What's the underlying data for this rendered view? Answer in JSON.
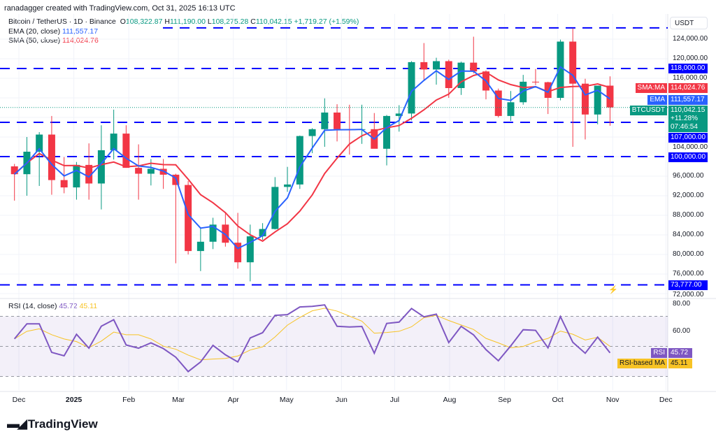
{
  "header": {
    "credit": "ranadagger created with TradingView.com, Oct 31, 2025 16:13 UTC"
  },
  "legend": {
    "symbol": "Bitcoin / TetherUS · 1D · Binance",
    "o_label": "O",
    "o": "108,322.87",
    "h_label": "H",
    "h": "111,190.00",
    "l_label": "L",
    "l": "108,275.28",
    "c_label": "C",
    "c": "110,042.15",
    "change": "+1,719.27 (+1.59%)",
    "ema_label": "EMA (20, close)",
    "ema_value": "111,557.17",
    "sma_label": "SMA (50, close)",
    "sma_value": "114,024.76",
    "rsi_label": "RSI (14, close)",
    "rsi_value": "45.72",
    "rsi_ma_value": "45.11"
  },
  "axis": {
    "currency": "USDT",
    "price_ticks": [
      "124,000.00",
      "120,000.00",
      "116,000.00",
      "104,000.00",
      "96,000.00",
      "92,000.00",
      "88,000.00",
      "84,000.00",
      "80,000.00",
      "76,000.00",
      "72,000.00"
    ],
    "rsi_ticks": [
      "80.00",
      "60.00"
    ],
    "time_ticks": [
      "Dec",
      "2025",
      "Feb",
      "Mar",
      "Apr",
      "May",
      "Jun",
      "Jul",
      "Aug",
      "Sep",
      "Oct",
      "Nov",
      "Dec"
    ]
  },
  "tags": {
    "sma": "SMA:MA",
    "sma_val": "114,024.76",
    "ema": "EMA",
    "ema_val": "111,557.17",
    "symbol": "BTCUSDT",
    "price": "110,042.15",
    "pct": "+11.28%",
    "countdown": "07:46:54",
    "rsi": "RSI",
    "rsi_val": "45.72",
    "rsi_ma": "RSI-based MA",
    "rsi_ma_val": "45.11"
  },
  "brand": "TradingView",
  "colors": {
    "up": "#089981",
    "down": "#f23645",
    "ema": "#2962ff",
    "sma": "#f23645",
    "level": "#0000ff",
    "rsi": "#7e57c2",
    "rsi_ma": "#f7c325"
  },
  "chart_data": {
    "type": "candlestick",
    "interval_shown": "weekly-approximation of 1D",
    "ylim": [
      72000,
      126500
    ],
    "levels": [
      {
        "value": 126300,
        "label": ""
      },
      {
        "value": 118000,
        "label": "118,000.00"
      },
      {
        "value": 107000,
        "label": "107,000.00"
      },
      {
        "value": 100000,
        "label": "100,000.00"
      },
      {
        "value": 73777,
        "label": "73,777.00"
      }
    ],
    "candles": [
      [
        "2024-11-25",
        98000,
        98500,
        91000,
        96400
      ],
      [
        "2024-12-02",
        96400,
        104000,
        92000,
        101000
      ],
      [
        "2024-12-09",
        101000,
        105000,
        94000,
        104500
      ],
      [
        "2024-12-16",
        104500,
        108300,
        92200,
        95200
      ],
      [
        "2024-12-23",
        95200,
        99900,
        92500,
        93700
      ],
      [
        "2024-12-30",
        93700,
        98900,
        91200,
        98300
      ],
      [
        "2025-01-06",
        98300,
        102700,
        91200,
        94500
      ],
      [
        "2025-01-13",
        94500,
        106400,
        89200,
        101300
      ],
      [
        "2025-01-20",
        101300,
        109600,
        99400,
        104700
      ],
      [
        "2025-01-27",
        104700,
        106400,
        97700,
        97700
      ],
      [
        "2025-02-03",
        97700,
        102500,
        91200,
        96500
      ],
      [
        "2025-02-10",
        96500,
        99500,
        94100,
        97500
      ],
      [
        "2025-02-17",
        97500,
        99500,
        93400,
        96300
      ],
      [
        "2025-02-24",
        96300,
        96500,
        78200,
        94200
      ],
      [
        "2025-03-03",
        94200,
        95000,
        80000,
        80700
      ],
      [
        "2025-03-10",
        80700,
        85300,
        76600,
        82600
      ],
      [
        "2025-03-17",
        82600,
        87500,
        81100,
        86100
      ],
      [
        "2025-03-24",
        86100,
        88700,
        81600,
        82400
      ],
      [
        "2025-03-31",
        82400,
        88500,
        77100,
        78400
      ],
      [
        "2025-04-07",
        78400,
        86100,
        74500,
        83700
      ],
      [
        "2025-04-14",
        83700,
        86400,
        83000,
        85200
      ],
      [
        "2025-04-21",
        85200,
        95800,
        85100,
        93800
      ],
      [
        "2025-04-28",
        93800,
        97900,
        92800,
        94300
      ],
      [
        "2025-05-05",
        94300,
        104300,
        93400,
        104200
      ],
      [
        "2025-05-12",
        104200,
        105800,
        100700,
        105600
      ],
      [
        "2025-05-19",
        105600,
        111900,
        102000,
        109000
      ],
      [
        "2025-05-26",
        109000,
        110700,
        103100,
        105600
      ],
      [
        "2025-06-02",
        105600,
        110600,
        100400,
        105500
      ],
      [
        "2025-06-09",
        105500,
        110600,
        102600,
        105600
      ],
      [
        "2025-06-16",
        105600,
        108900,
        102000,
        101600
      ],
      [
        "2025-06-23",
        101600,
        108500,
        98200,
        108300
      ],
      [
        "2025-06-30",
        108300,
        110500,
        105100,
        108800
      ],
      [
        "2025-07-07",
        108800,
        119500,
        107400,
        119300
      ],
      [
        "2025-07-14",
        119300,
        123200,
        115700,
        117800
      ],
      [
        "2025-07-21",
        117800,
        120200,
        114700,
        119500
      ],
      [
        "2025-07-28",
        119500,
        119800,
        112000,
        114000
      ],
      [
        "2025-08-04",
        114000,
        119400,
        112600,
        119200
      ],
      [
        "2025-08-11",
        119200,
        124500,
        117000,
        117400
      ],
      [
        "2025-08-18",
        117400,
        117600,
        111700,
        113500
      ],
      [
        "2025-08-25",
        113500,
        113900,
        108000,
        108300
      ],
      [
        "2025-09-01",
        108300,
        113400,
        107300,
        111100
      ],
      [
        "2025-09-08",
        111100,
        116700,
        110600,
        115300
      ],
      [
        "2025-09-15",
        115300,
        117900,
        114600,
        115200
      ],
      [
        "2025-09-22",
        115200,
        115300,
        108700,
        112000
      ],
      [
        "2025-09-29",
        112000,
        123900,
        111500,
        123500
      ],
      [
        "2025-10-06",
        123500,
        126200,
        102000,
        114900
      ],
      [
        "2025-10-13",
        114900,
        115900,
        103500,
        108600
      ],
      [
        "2025-10-20",
        108600,
        114000,
        106600,
        114500
      ],
      [
        "2025-10-27",
        114500,
        116400,
        106300,
        110042.15
      ]
    ]
  }
}
